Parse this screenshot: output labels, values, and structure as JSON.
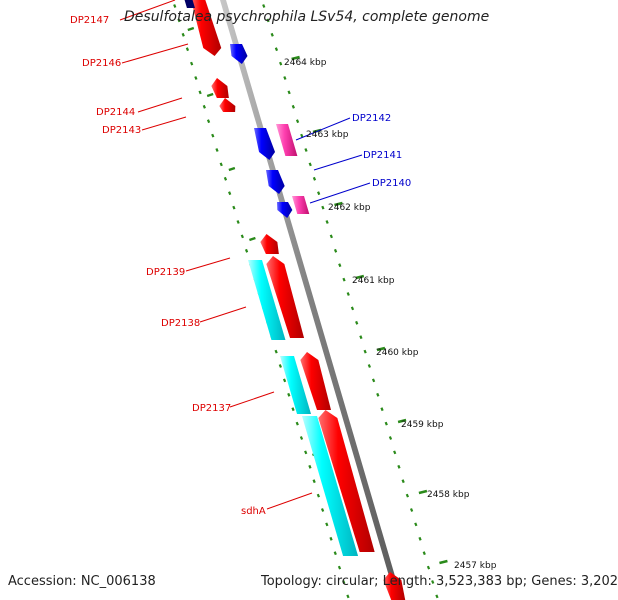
{
  "title": "Desulfotalea psychrophila LSv54, complete genome",
  "accession_text": "Accession: NC_006138",
  "topology_text": "Topology: circular; Length: 3,523,383 bp; Genes: 3,202",
  "scale_labels": [
    "2464 kbp",
    "2463 kbp",
    "2462 kbp",
    "2461 kbp",
    "2460 kbp",
    "2459 kbp",
    "2458 kbp",
    "2457 kbp"
  ],
  "genes_left": [
    {
      "name": "DP2147",
      "color": "#dd0000"
    },
    {
      "name": "DP2146",
      "color": "#dd0000"
    },
    {
      "name": "DP2144",
      "color": "#dd0000"
    },
    {
      "name": "DP2143",
      "color": "#dd0000"
    },
    {
      "name": "DP2139",
      "color": "#dd0000"
    },
    {
      "name": "DP2138",
      "color": "#dd0000"
    },
    {
      "name": "DP2137",
      "color": "#dd0000"
    },
    {
      "name": "sdhA",
      "color": "#dd0000"
    }
  ],
  "genes_right": [
    {
      "name": "DP2142",
      "color": "#0000cc"
    },
    {
      "name": "DP2141",
      "color": "#0000cc"
    },
    {
      "name": "DP2140",
      "color": "#0000cc"
    }
  ],
  "colors": {
    "forward_cds": "#ff0000",
    "reverse_cds": "#0000ff",
    "rna": "#ff33aa",
    "feature": "#00ffff",
    "backbone": "#808080",
    "tick": "#2a8a1a"
  }
}
